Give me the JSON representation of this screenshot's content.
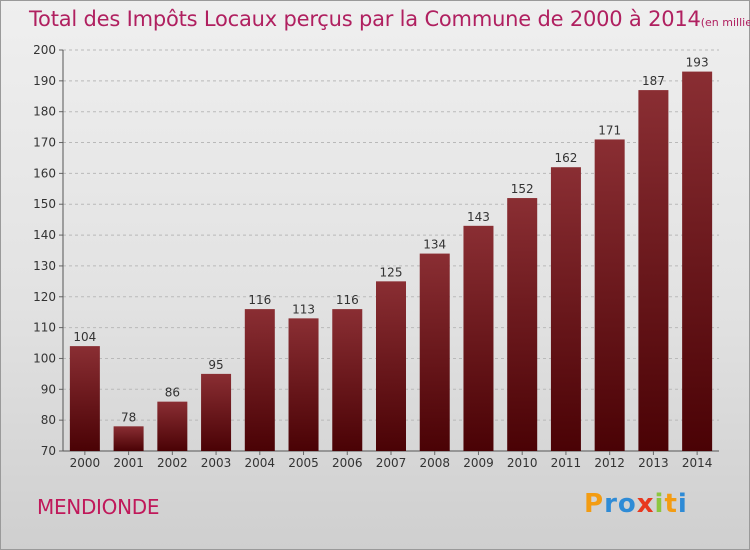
{
  "chart_data": {
    "type": "bar",
    "title": "Total des Impôts Locaux perçus par la Commune de 2000 à 2014",
    "subtitle": "(en milliers d'€)",
    "categories": [
      "2000",
      "2001",
      "2002",
      "2003",
      "2004",
      "2005",
      "2006",
      "2007",
      "2008",
      "2009",
      "2010",
      "2011",
      "2012",
      "2013",
      "2014"
    ],
    "values": [
      104,
      78,
      86,
      95,
      116,
      113,
      116,
      125,
      134,
      143,
      152,
      162,
      171,
      187,
      193
    ],
    "ylim": [
      70,
      200
    ],
    "yticks": [
      70,
      80,
      90,
      100,
      110,
      120,
      130,
      140,
      150,
      160,
      170,
      180,
      190,
      200
    ],
    "grid": true,
    "bar_color": "#6e1a1e"
  },
  "footer": {
    "commune": "MENDIONDE",
    "brand": "Proxiti"
  },
  "colors": {
    "title": "#b02060",
    "commune": "#c0185a",
    "brand_letters": [
      "#f39c12",
      "#2e8bd6",
      "#2e8bd6",
      "#e8381f",
      "#8cc63f",
      "#f39c12",
      "#2e8bd6"
    ]
  }
}
